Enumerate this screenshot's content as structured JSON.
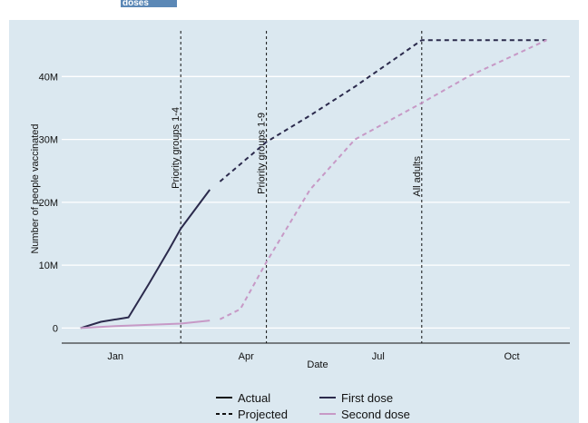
{
  "header": {
    "fragment_text": "doses"
  },
  "chart_data": {
    "type": "line",
    "xlabel": "Date",
    "ylabel": "Number of people vaccinated",
    "x_ticks": [
      "Jan",
      "Apr",
      "Jul",
      "Oct"
    ],
    "x_tick_dates": [
      "2021-01-01",
      "2021-04-01",
      "2021-07-01",
      "2021-10-01"
    ],
    "y_ticks": [
      "0",
      "10M",
      "20M",
      "30M",
      "40M"
    ],
    "y_tick_values": [
      0,
      10000000,
      20000000,
      30000000,
      40000000
    ],
    "ylim": [
      -2400000,
      49000000
    ],
    "xlim": [
      "2020-11-25",
      "2021-11-10"
    ],
    "grid": "horizontal",
    "annotations": [
      {
        "label": "Priority groups 1-4",
        "date": "2021-02-15"
      },
      {
        "label": "Priority groups 1-9",
        "date": "2021-04-15"
      },
      {
        "label": "All adults",
        "date": "2021-07-31"
      }
    ],
    "series": [
      {
        "name": "First dose",
        "color": "#2b2a4c",
        "segments": [
          {
            "status": "Actual",
            "x": [
              "2020-12-08",
              "2020-12-22",
              "2021-01-10",
              "2021-01-24",
              "2021-02-07",
              "2021-02-15",
              "2021-03-07"
            ],
            "y": [
              0,
              1000000,
              1700000,
              7000000,
              12500000,
              15800000,
              22000000
            ]
          },
          {
            "status": "Projected",
            "x": [
              "2021-03-14",
              "2021-04-15",
              "2021-05-15",
              "2021-06-15",
              "2021-07-31",
              "2021-10-25"
            ],
            "y": [
              23300000,
              29600000,
              33800000,
              38400000,
              45800000,
              45800000
            ]
          }
        ]
      },
      {
        "name": "Second dose",
        "color": "#c799c6",
        "segments": [
          {
            "status": "Actual",
            "x": [
              "2020-12-08",
              "2021-01-01",
              "2021-02-15",
              "2021-03-07"
            ],
            "y": [
              0,
              300000,
              700000,
              1200000
            ]
          },
          {
            "status": "Projected",
            "x": [
              "2021-03-14",
              "2021-03-28",
              "2021-04-15",
              "2021-05-15",
              "2021-06-15",
              "2021-07-31",
              "2021-09-01",
              "2021-10-25"
            ],
            "y": [
              1400000,
              3000000,
              10500000,
              22000000,
              30000000,
              35800000,
              40000000,
              45800000
            ]
          }
        ]
      }
    ],
    "legend": {
      "placement": "bottom",
      "linetype_items": [
        {
          "label": "Actual",
          "style": "solid"
        },
        {
          "label": "Projected",
          "style": "dashed"
        }
      ],
      "colour_items": [
        {
          "label": "First dose",
          "color": "#2b2a4c"
        },
        {
          "label": "Second dose",
          "color": "#c799c6"
        }
      ]
    }
  }
}
